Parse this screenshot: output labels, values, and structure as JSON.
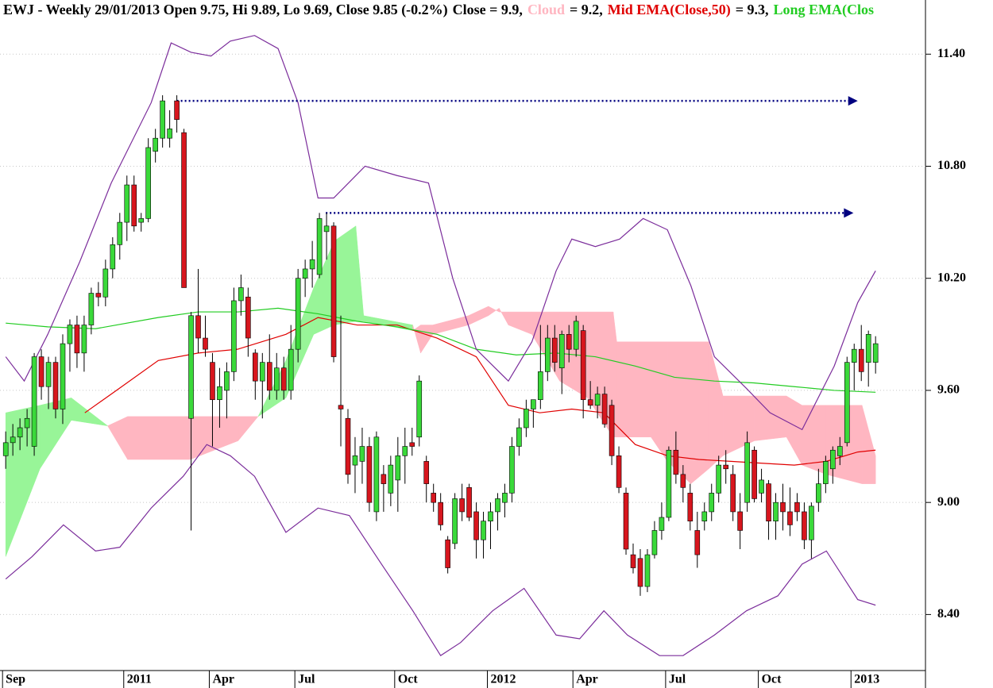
{
  "chart_data": {
    "type": "candlestick",
    "title": "EWJ - Weekly 29/01/2013 Open 9.75, Hi 9.89, Lo 9.69, Close 9.85 (-0.2%)",
    "close_label": "Close = 9.9,",
    "xlim": [
      -0.8,
      129
    ],
    "ylim": [
      8.1,
      11.69
    ],
    "grid": true,
    "xticks": [
      {
        "value": 0,
        "label": "Sep"
      },
      {
        "value": 17,
        "label": "2011"
      },
      {
        "value": 29,
        "label": "Apr"
      },
      {
        "value": 41,
        "label": "Jul"
      },
      {
        "value": 55,
        "label": "Oct"
      },
      {
        "value": 68,
        "label": "2012"
      },
      {
        "value": 80,
        "label": "Apr"
      },
      {
        "value": 93,
        "label": "Jul"
      },
      {
        "value": 106,
        "label": "Oct"
      },
      {
        "value": 119,
        "label": "2013"
      }
    ],
    "yticks": [
      {
        "value": 8.4,
        "label": "8.40"
      },
      {
        "value": 9.0,
        "label": "9.00"
      },
      {
        "value": 9.6,
        "label": "9.60"
      },
      {
        "value": 10.2,
        "label": "10.20"
      },
      {
        "value": 10.8,
        "label": "10.80"
      },
      {
        "value": 11.4,
        "label": "11.40"
      }
    ],
    "candles": {
      "up_color": "#3ad93a",
      "down_color": "#d7161e",
      "ohlc": [
        [
          9.25,
          9.38,
          9.18,
          9.32
        ],
        [
          9.32,
          9.42,
          9.25,
          9.35
        ],
        [
          9.35,
          9.45,
          9.28,
          9.4
        ],
        [
          9.4,
          9.5,
          9.3,
          9.45
        ],
        [
          9.3,
          9.8,
          9.25,
          9.78
        ],
        [
          9.78,
          9.82,
          9.55,
          9.62
        ],
        [
          9.62,
          9.78,
          9.5,
          9.75
        ],
        [
          9.75,
          9.78,
          9.45,
          9.5
        ],
        [
          9.5,
          9.9,
          9.42,
          9.85
        ],
        [
          9.85,
          9.98,
          9.7,
          9.95
        ],
        [
          9.95,
          10.0,
          9.72,
          9.8
        ],
        [
          9.8,
          10.0,
          9.7,
          9.95
        ],
        [
          9.95,
          10.15,
          9.9,
          10.12
        ],
        [
          10.12,
          10.18,
          10.05,
          10.1
        ],
        [
          10.1,
          10.3,
          10.05,
          10.25
        ],
        [
          10.25,
          10.42,
          10.2,
          10.38
        ],
        [
          10.38,
          10.55,
          10.3,
          10.5
        ],
        [
          10.5,
          10.75,
          10.4,
          10.7
        ],
        [
          10.7,
          10.75,
          10.45,
          10.48
        ],
        [
          10.5,
          10.55,
          10.45,
          10.52
        ],
        [
          10.52,
          10.95,
          10.5,
          10.9
        ],
        [
          10.88,
          11.0,
          10.82,
          10.95
        ],
        [
          10.95,
          11.18,
          10.9,
          11.15
        ],
        [
          10.95,
          11.1,
          10.9,
          11.0
        ],
        [
          11.15,
          11.18,
          10.98,
          11.05
        ],
        [
          10.98,
          11.0,
          10.15,
          10.15
        ],
        [
          9.45,
          10.02,
          8.85,
          10.0
        ],
        [
          10.0,
          10.25,
          9.8,
          9.88
        ],
        [
          9.88,
          10.0,
          9.78,
          9.82
        ],
        [
          9.75,
          9.8,
          9.3,
          9.55
        ],
        [
          9.55,
          9.72,
          9.4,
          9.62
        ],
        [
          9.6,
          9.75,
          9.45,
          9.7
        ],
        [
          9.7,
          10.15,
          9.65,
          10.08
        ],
        [
          10.08,
          10.22,
          10.0,
          10.15
        ],
        [
          10.1,
          10.15,
          9.78,
          9.88
        ],
        [
          9.8,
          9.82,
          9.55,
          9.65
        ],
        [
          9.65,
          9.8,
          9.45,
          9.75
        ],
        [
          9.75,
          9.9,
          9.55,
          9.6
        ],
        [
          9.6,
          9.8,
          9.55,
          9.72
        ],
        [
          9.72,
          9.78,
          9.55,
          9.6
        ],
        [
          9.6,
          9.95,
          9.55,
          9.82
        ],
        [
          9.82,
          10.25,
          9.75,
          10.2
        ],
        [
          10.2,
          10.3,
          10.1,
          10.25
        ],
        [
          10.25,
          10.4,
          10.15,
          10.3
        ],
        [
          10.22,
          10.55,
          10.2,
          10.52
        ],
        [
          10.45,
          10.55,
          10.3,
          10.48
        ],
        [
          10.48,
          10.5,
          9.75,
          9.78
        ],
        [
          9.52,
          10.0,
          9.3,
          9.5
        ],
        [
          9.45,
          9.5,
          9.1,
          9.15
        ],
        [
          9.2,
          9.35,
          9.05,
          9.25
        ],
        [
          9.22,
          9.4,
          9.1,
          9.3
        ],
        [
          9.3,
          9.35,
          8.95,
          9.0
        ],
        [
          8.95,
          9.38,
          8.9,
          9.35
        ],
        [
          9.15,
          9.2,
          8.95,
          9.1
        ],
        [
          9.05,
          9.25,
          8.98,
          9.2
        ],
        [
          9.12,
          9.35,
          8.95,
          9.25
        ],
        [
          9.25,
          9.4,
          9.1,
          9.3
        ],
        [
          9.32,
          9.4,
          9.25,
          9.3
        ],
        [
          9.35,
          9.68,
          9.3,
          9.65
        ],
        [
          9.22,
          9.25,
          9.0,
          9.1
        ],
        [
          9.05,
          9.1,
          8.95,
          9.0
        ],
        [
          9.0,
          9.05,
          8.85,
          8.88
        ],
        [
          8.8,
          8.82,
          8.62,
          8.65
        ],
        [
          8.78,
          9.05,
          8.75,
          9.02
        ],
        [
          9.02,
          9.1,
          8.9,
          8.95
        ],
        [
          9.08,
          9.1,
          8.9,
          8.92
        ],
        [
          8.95,
          9.0,
          8.7,
          8.8
        ],
        [
          8.8,
          8.95,
          8.7,
          8.9
        ],
        [
          8.9,
          9.0,
          8.75,
          8.95
        ],
        [
          8.95,
          9.05,
          8.85,
          9.02
        ],
        [
          9.0,
          9.1,
          8.92,
          9.05
        ],
        [
          9.05,
          9.35,
          9.0,
          9.3
        ],
        [
          9.3,
          9.45,
          9.25,
          9.4
        ],
        [
          9.4,
          9.55,
          9.35,
          9.5
        ],
        [
          9.5,
          9.55,
          9.4,
          9.55
        ],
        [
          9.55,
          9.95,
          9.5,
          9.7
        ],
        [
          9.7,
          9.95,
          9.65,
          9.88
        ],
        [
          9.88,
          9.95,
          9.7,
          9.75
        ],
        [
          9.72,
          9.92,
          9.58,
          9.9
        ],
        [
          9.9,
          9.95,
          9.75,
          9.82
        ],
        [
          9.82,
          10.0,
          9.78,
          9.97
        ],
        [
          9.92,
          9.95,
          9.45,
          9.55
        ],
        [
          9.55,
          9.65,
          9.5,
          9.52
        ],
        [
          9.52,
          9.62,
          9.45,
          9.58
        ],
        [
          9.58,
          9.62,
          9.4,
          9.42
        ],
        [
          9.52,
          9.55,
          9.2,
          9.25
        ],
        [
          9.25,
          9.3,
          9.05,
          9.08
        ],
        [
          9.05,
          9.08,
          8.72,
          8.75
        ],
        [
          8.72,
          8.78,
          8.62,
          8.65
        ],
        [
          8.7,
          8.75,
          8.5,
          8.55
        ],
        [
          8.55,
          8.75,
          8.52,
          8.72
        ],
        [
          8.72,
          8.9,
          8.7,
          8.85
        ],
        [
          8.85,
          9.0,
          8.8,
          8.92
        ],
        [
          8.92,
          9.3,
          8.9,
          9.28
        ],
        [
          9.28,
          9.38,
          9.1,
          9.15
        ],
        [
          9.15,
          9.2,
          9.0,
          9.08
        ],
        [
          9.05,
          9.1,
          8.85,
          8.9
        ],
        [
          8.85,
          8.95,
          8.65,
          8.72
        ],
        [
          8.9,
          9.0,
          8.85,
          8.95
        ],
        [
          8.95,
          9.1,
          8.9,
          9.05
        ],
        [
          9.05,
          9.25,
          9.0,
          9.2
        ],
        [
          9.2,
          9.28,
          9.1,
          9.18
        ],
        [
          9.15,
          9.2,
          8.9,
          8.95
        ],
        [
          8.95,
          9.05,
          8.75,
          8.85
        ],
        [
          9.0,
          9.38,
          8.95,
          9.32
        ],
        [
          9.28,
          9.3,
          9.0,
          9.02
        ],
        [
          9.05,
          9.18,
          9.0,
          9.12
        ],
        [
          9.1,
          9.12,
          8.8,
          8.9
        ],
        [
          8.9,
          9.05,
          8.8,
          9.0
        ],
        [
          9.0,
          9.1,
          8.85,
          8.95
        ],
        [
          8.95,
          9.08,
          8.82,
          8.88
        ],
        [
          9.0,
          9.05,
          8.9,
          8.95
        ],
        [
          8.95,
          9.0,
          8.75,
          8.8
        ],
        [
          8.8,
          9.0,
          8.7,
          8.98
        ],
        [
          9.0,
          9.18,
          8.95,
          9.1
        ],
        [
          9.1,
          9.25,
          9.05,
          9.22
        ],
        [
          9.18,
          9.3,
          9.1,
          9.28
        ],
        [
          9.25,
          9.35,
          9.2,
          9.3
        ],
        [
          9.32,
          9.78,
          9.3,
          9.75
        ],
        [
          9.75,
          9.85,
          9.6,
          9.82
        ],
        [
          9.82,
          9.95,
          9.65,
          9.7
        ],
        [
          9.75,
          9.92,
          9.62,
          9.9
        ],
        [
          9.75,
          9.89,
          9.69,
          9.85
        ]
      ]
    },
    "cloud": {
      "name": "Cloud",
      "legend_label": "= 9.2,",
      "up_color": "#98f598",
      "down_color": "#ffb6c1",
      "x": [
        0,
        4.8,
        9.2,
        14.3,
        17.1,
        25.9,
        32.6,
        35.4,
        39.3,
        43.2,
        46.1,
        49.1,
        50.2,
        57.1,
        58.2,
        59.9,
        64.9,
        67.7,
        69.2,
        70.5,
        73.8,
        77.7,
        81.6,
        85.2,
        85.7,
        90.5,
        92.8,
        96.1,
        98.6,
        100.6,
        105,
        109.5,
        111.7,
        115.1,
        120.1,
        122
      ],
      "span_a": [
        9.48,
        9.52,
        9.56,
        9.41,
        9.23,
        9.23,
        9.33,
        9.46,
        9.76,
        10.15,
        10.4,
        10.48,
        10.0,
        9.95,
        9.8,
        9.9,
        9.95,
        10.0,
        10.04,
        9.95,
        9.9,
        9.65,
        9.56,
        9.35,
        9.35,
        9.35,
        9.22,
        9.1,
        9.18,
        9.25,
        9.33,
        9.35,
        9.2,
        9.15,
        9.1,
        9.1
      ],
      "span_b": [
        8.71,
        9.18,
        9.44,
        9.41,
        9.46,
        9.46,
        9.46,
        9.46,
        9.56,
        9.9,
        9.95,
        9.97,
        9.97,
        9.92,
        9.95,
        9.95,
        10.0,
        10.05,
        10.02,
        10.02,
        10.02,
        10.02,
        10.02,
        10.02,
        9.86,
        9.86,
        9.86,
        9.86,
        9.86,
        9.57,
        9.57,
        9.57,
        9.52,
        9.52,
        9.52,
        9.25
      ]
    },
    "series": [
      {
        "name": "Mid EMA(Close,50)",
        "legend_label": "= 9.3,",
        "color": "#e00000",
        "x": [
          11.1,
          15.9,
          21.4,
          27,
          32.5,
          39.3,
          43.8,
          49.3,
          54.9,
          60.5,
          66,
          70.5,
          74.9,
          79.4,
          83.9,
          88.3,
          92.8,
          97.2,
          101.7,
          106.1,
          110.6,
          115.1,
          119.5,
          122
        ],
        "values": [
          9.48,
          9.61,
          9.76,
          9.8,
          9.82,
          9.9,
          9.99,
          9.95,
          9.95,
          9.88,
          9.78,
          9.52,
          9.48,
          9.5,
          9.48,
          9.31,
          9.25,
          9.23,
          9.22,
          9.21,
          9.2,
          9.22,
          9.27,
          9.28
        ]
      },
      {
        "name": "Long EMA(Clos",
        "color": "#22cc22",
        "x": [
          0,
          5.9,
          12.6,
          21.4,
          27,
          32.6,
          38.2,
          43.8,
          49.3,
          54.9,
          60.5,
          66,
          71.6,
          77.2,
          82.7,
          88.3,
          93.8,
          99.4,
          104.9,
          110.6,
          116.2,
          122
        ],
        "values": [
          9.96,
          9.94,
          9.93,
          9.99,
          10.02,
          10.02,
          10.04,
          10.01,
          9.97,
          9.94,
          9.9,
          9.82,
          9.79,
          9.8,
          9.78,
          9.73,
          9.67,
          9.65,
          9.64,
          9.62,
          9.6,
          9.59
        ]
      },
      {
        "color": "#7b2d9b",
        "x": [
          0,
          2.6,
          5.9,
          10.4,
          14.8,
          20.4,
          23.2,
          26,
          28.8,
          31.5,
          34.9,
          38.2,
          41,
          43.8,
          46,
          50.4,
          54.9,
          59.3,
          62.7,
          66,
          70.5,
          73.8,
          77.2,
          79.4,
          82.7,
          86.1,
          89.4,
          92.8,
          96.1,
          99.4,
          103.9,
          107.2,
          111.7,
          116.2,
          119.5,
          122
        ],
        "values": [
          9.78,
          9.65,
          9.9,
          10.29,
          10.71,
          11.14,
          11.46,
          11.41,
          11.39,
          11.47,
          11.5,
          11.43,
          11.14,
          10.63,
          10.63,
          10.8,
          10.75,
          10.71,
          10.2,
          9.82,
          9.65,
          9.86,
          10.24,
          10.41,
          10.37,
          10.41,
          10.52,
          10.46,
          10.16,
          9.78,
          9.61,
          9.48,
          9.39,
          9.73,
          10.07,
          10.24
        ]
      },
      {
        "color": "#7b2d9b",
        "x": [
          0,
          3.7,
          8.1,
          12.6,
          16,
          20.4,
          24.9,
          28.2,
          31.5,
          34.9,
          39.3,
          43.8,
          48.2,
          52.7,
          57.1,
          61,
          63.8,
          68.3,
          72.7,
          77.2,
          80.5,
          83.9,
          87.2,
          91.7,
          95,
          99.4,
          103.9,
          108.3,
          111.7,
          115.1,
          119.5,
          122
        ],
        "values": [
          8.59,
          8.71,
          8.88,
          8.74,
          8.76,
          8.97,
          9.14,
          9.31,
          9.25,
          9.14,
          8.84,
          8.97,
          8.93,
          8.67,
          8.42,
          8.18,
          8.25,
          8.42,
          8.54,
          8.29,
          8.27,
          8.42,
          8.29,
          8.18,
          8.18,
          8.29,
          8.42,
          8.5,
          8.67,
          8.74,
          8.48,
          8.45
        ]
      }
    ],
    "levels": [
      {
        "value": 11.15,
        "x": [
          24,
          119.5
        ],
        "color": "#000080"
      },
      {
        "value": 10.55,
        "x": [
          44.9,
          118.9
        ],
        "color": "#000080"
      }
    ]
  }
}
